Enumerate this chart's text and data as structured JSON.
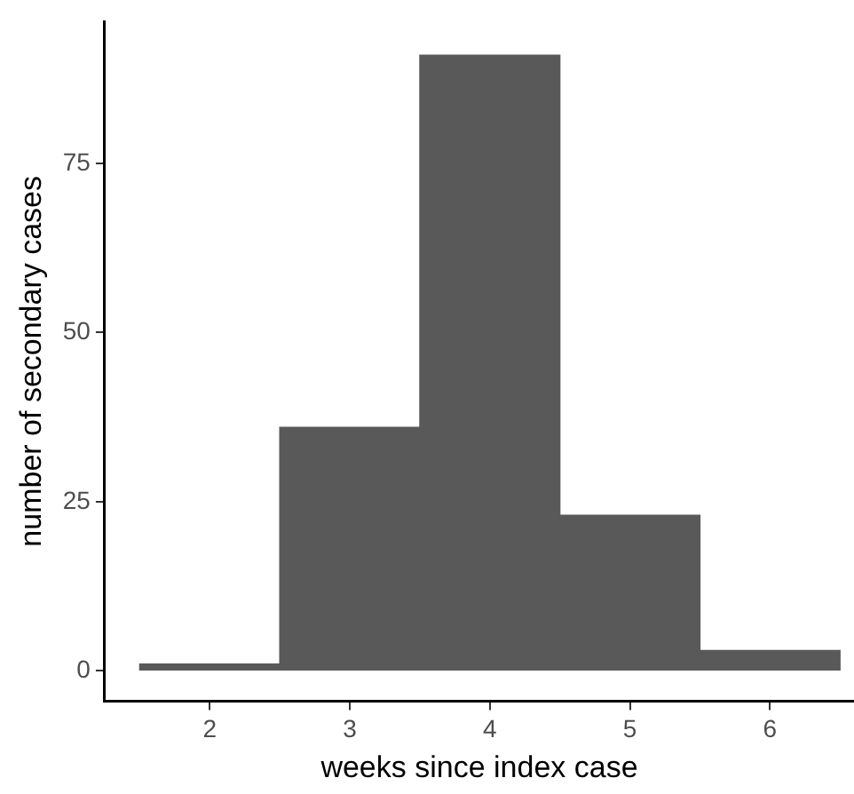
{
  "chart_data": {
    "type": "histogram",
    "xlabel": "weeks since index case",
    "ylabel": "number of secondary cases",
    "bins": [
      1.5,
      2.5,
      3.5,
      4.5,
      5.5,
      6.5
    ],
    "values": [
      1,
      36,
      91,
      23,
      3
    ],
    "color": "#595959",
    "xlim": [
      1.25,
      6.6
    ],
    "xticks": [
      2,
      3,
      4,
      5,
      6
    ],
    "ylim": [
      -4.5,
      96
    ],
    "yticks": [
      0,
      25,
      50,
      75
    ],
    "grid": false,
    "legend": false
  }
}
